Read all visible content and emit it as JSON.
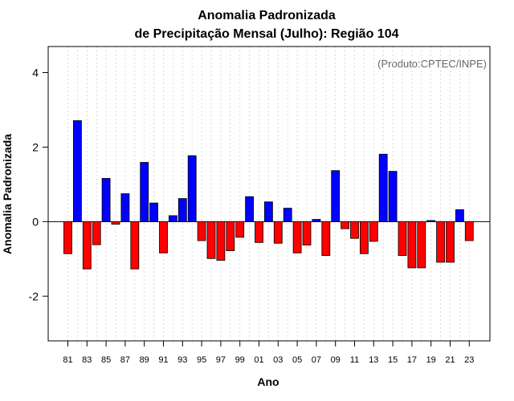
{
  "chart_data": {
    "type": "bar",
    "title": [
      "Anomalia Padronizada",
      "de Precipitação Mensal (Julho): Região 104"
    ],
    "xlabel": "Ano",
    "ylabel": "Anomalia Padronizada",
    "annotation": "(Produto:CPTEC/INPE)",
    "ylim": [
      -3.2,
      4.7
    ],
    "yticks": [
      -2,
      0,
      2,
      4
    ],
    "ytick_labels": [
      "-2",
      "0",
      "2",
      "4"
    ],
    "xtick_labels": [
      "81",
      "83",
      "85",
      "87",
      "89",
      "91",
      "93",
      "95",
      "97",
      "99",
      "01",
      "03",
      "05",
      "07",
      "09",
      "11",
      "13",
      "15",
      "17",
      "19",
      "21",
      "23"
    ],
    "categories": [
      "81",
      "82",
      "83",
      "84",
      "85",
      "86",
      "87",
      "88",
      "89",
      "90",
      "91",
      "92",
      "93",
      "94",
      "95",
      "96",
      "97",
      "98",
      "99",
      "00",
      "01",
      "02",
      "03",
      "04",
      "05",
      "06",
      "07",
      "08",
      "09",
      "10",
      "11",
      "12",
      "13",
      "14",
      "15",
      "16",
      "17",
      "18",
      "19",
      "20",
      "21",
      "22",
      "23"
    ],
    "values": [
      -0.86,
      2.71,
      -1.27,
      -0.62,
      1.16,
      -0.07,
      0.75,
      -1.27,
      1.59,
      0.5,
      -0.84,
      0.16,
      0.62,
      1.77,
      -0.51,
      -0.99,
      -1.04,
      -0.78,
      -0.42,
      0.67,
      -0.56,
      0.53,
      -0.58,
      0.36,
      -0.84,
      -0.63,
      0.06,
      -0.91,
      1.37,
      -0.19,
      -0.45,
      -0.86,
      -0.53,
      1.81,
      1.35,
      -0.91,
      -1.24,
      -1.24,
      0.03,
      -1.09,
      -1.09,
      0.32,
      -0.51
    ],
    "colors": {
      "positive": "#0000ff",
      "negative": "#ff0000",
      "zero_line": "#000000",
      "grid": "#d3d3d3"
    },
    "grid": true
  }
}
